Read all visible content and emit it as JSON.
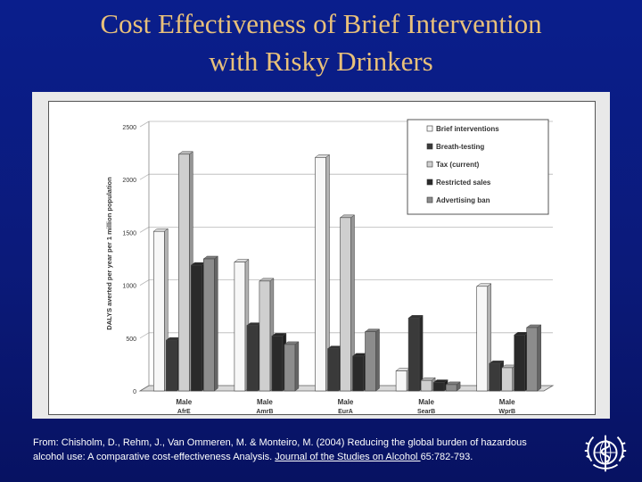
{
  "slide": {
    "title_line1": "Cost Effectiveness of Brief Intervention",
    "title_line2": "with Risky Drinkers"
  },
  "citation": {
    "line1": "From: Chisholm, D., Rehm, J., Van Ommeren, M. & Monteiro, M. (2004) Reducing the global burden of hazardous",
    "line2_prefix": "alcohol use: A comparative cost-effectiveness Analysis. ",
    "journal": "Journal of the Studies on Alcohol ",
    "line2_suffix": "65:782-793."
  },
  "logo": {
    "icon": "who-emblem-icon"
  },
  "chart_data": {
    "type": "bar",
    "title": "",
    "xlabel": "",
    "ylabel": "DALYS averted per year per 1 million population",
    "ylim": [
      0,
      2500
    ],
    "yticks": [
      0,
      500,
      1000,
      1500,
      2000,
      2500
    ],
    "grid": true,
    "legend_position": "top-right",
    "categories": [
      {
        "line1": "Male",
        "line2": "AfrE"
      },
      {
        "line1": "Male",
        "line2": "AmrB"
      },
      {
        "line1": "Male",
        "line2": "EurA"
      },
      {
        "line1": "Male",
        "line2": "SearB"
      },
      {
        "line1": "Male",
        "line2": "WprB"
      }
    ],
    "series": [
      {
        "name": "Brief interventions",
        "color": "#f7f7f7",
        "values": [
          1510,
          1220,
          2210,
          190,
          990
        ]
      },
      {
        "name": "Breath-testing",
        "color": "#3a3a3a",
        "values": [
          480,
          620,
          400,
          690,
          260
        ]
      },
      {
        "name": "Tax (current)",
        "color": "#cfcfcf",
        "values": [
          2240,
          1040,
          1640,
          100,
          220
        ]
      },
      {
        "name": "Restricted sales",
        "color": "#2a2a2a",
        "values": [
          1190,
          520,
          330,
          80,
          530
        ]
      },
      {
        "name": "Advertising ban",
        "color": "#8c8c8c",
        "values": [
          1250,
          440,
          560,
          60,
          600
        ]
      }
    ]
  }
}
